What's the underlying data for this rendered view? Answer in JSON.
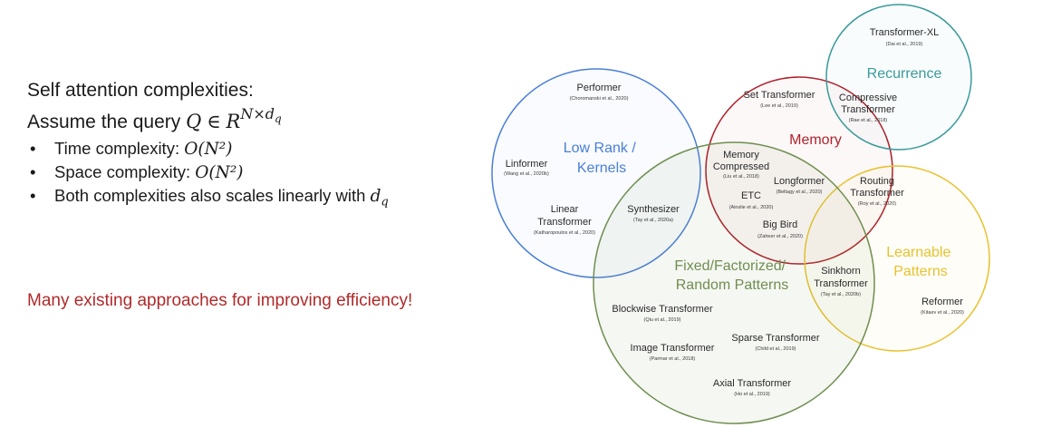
{
  "heading": "Self attention complexities:",
  "assume": {
    "prefix": "Assume the query ",
    "q": "Q",
    "in": "∈",
    "r": "R",
    "sup": "N×d",
    "sub": "q"
  },
  "bullets": [
    {
      "text": "Time complexity: ",
      "math": "O(N²)"
    },
    {
      "text": "Space complexity: ",
      "math": "O(N²)"
    },
    {
      "text": "Both complexities also scales linearly with ",
      "math": "d",
      "sub": "q"
    }
  ],
  "note": "Many existing approaches for improving efficiency!",
  "colors": {
    "low_rank": "#4a7fd6",
    "memory": "#b0222d",
    "recurrence": "#3a9a9a",
    "learnable": "#e8c230",
    "fixed": "#6f8e4f",
    "note": "#b02a2a"
  },
  "diagram": {
    "categories": {
      "low_rank": [
        "Low Rank /",
        "Kernels"
      ],
      "memory": [
        "Memory"
      ],
      "recurrence": [
        "Recurrence"
      ],
      "learnable": [
        "Learnable",
        "Patterns"
      ],
      "fixed": [
        "Fixed/Factorized/",
        "Random Patterns"
      ]
    },
    "models": [
      {
        "id": "transformer-xl",
        "name": [
          "Transformer-XL"
        ],
        "cite": "(Dai et al., 2019)"
      },
      {
        "id": "performer",
        "name": [
          "Performer"
        ],
        "cite": "(Choromanski et al., 2020)"
      },
      {
        "id": "set-transformer",
        "name": [
          "Set Transformer"
        ],
        "cite": "(Lee et al., 2019)"
      },
      {
        "id": "compressive-transformer",
        "name": [
          "Compressive",
          "Transformer"
        ],
        "cite": "(Rae et al., 2018)"
      },
      {
        "id": "memory-compressed",
        "name": [
          "Memory",
          "Compressed"
        ],
        "cite": "(Liu et al., 2018)"
      },
      {
        "id": "linformer",
        "name": [
          "Linformer"
        ],
        "cite": "(Wang et al., 2020b)"
      },
      {
        "id": "longformer",
        "name": [
          "Longformer"
        ],
        "cite": "(Beltagy et al., 2020)"
      },
      {
        "id": "etc",
        "name": [
          "ETC"
        ],
        "cite": "(Ainslie et al., 2020)"
      },
      {
        "id": "routing-transformer",
        "name": [
          "Routing",
          "Transformer"
        ],
        "cite": "(Roy et al., 2020)"
      },
      {
        "id": "linear-transformer",
        "name": [
          "Linear",
          "Transformer"
        ],
        "cite": "(Katharopoulos et al., 2020)"
      },
      {
        "id": "synthesizer",
        "name": [
          "Synthesizer"
        ],
        "cite": "(Tay et al., 2020a)"
      },
      {
        "id": "big-bird",
        "name": [
          "Big Bird"
        ],
        "cite": "(Zaheer et al., 2020)"
      },
      {
        "id": "sinkhorn-transformer",
        "name": [
          "Sinkhorn",
          "Transformer"
        ],
        "cite": "(Tay et al., 2020b)"
      },
      {
        "id": "reformer",
        "name": [
          "Reformer"
        ],
        "cite": "(Kitaev et al., 2020)"
      },
      {
        "id": "blockwise-transformer",
        "name": [
          "Blockwise Transformer"
        ],
        "cite": "(Qiu et al., 2019)"
      },
      {
        "id": "sparse-transformer",
        "name": [
          "Sparse Transformer"
        ],
        "cite": "(Child et al., 2019)"
      },
      {
        "id": "image-transformer",
        "name": [
          "Image Transformer"
        ],
        "cite": "(Parmar et al., 2018)"
      },
      {
        "id": "axial-transformer",
        "name": [
          "Axial Transformer"
        ],
        "cite": "(Ho et al., 2019)"
      }
    ]
  }
}
